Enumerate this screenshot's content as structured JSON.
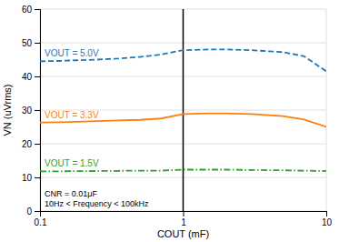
{
  "chart_data": {
    "type": "line",
    "log": "x",
    "grid": true,
    "x_label": "COUT (mF)",
    "y_label": "VN (uVrms)",
    "xlim": [
      0.1,
      10
    ],
    "xticks": [
      0.1,
      1,
      10
    ],
    "ylim": [
      0,
      60
    ],
    "yticks": [
      0,
      10,
      20,
      30,
      40,
      50,
      60
    ],
    "x": [
      0.1,
      0.13,
      0.18,
      0.25,
      0.35,
      0.5,
      0.7,
      1.0,
      1.5,
      2.0,
      3.0,
      5.0,
      7.0,
      10.0
    ],
    "series": [
      {
        "name": "VOUT = 5.0V",
        "line_style": "dashed",
        "values": [
          44.5,
          44.6,
          44.8,
          45.0,
          45.3,
          45.8,
          46.5,
          47.8,
          48.0,
          48.0,
          47.8,
          47.2,
          46.0,
          41.5
        ]
      },
      {
        "name": "VOUT = 3.3V",
        "line_style": "solid",
        "values": [
          26.3,
          26.4,
          26.5,
          26.7,
          26.9,
          27.1,
          27.5,
          28.8,
          29.0,
          29.0,
          28.8,
          28.2,
          27.2,
          25.0
        ]
      },
      {
        "name": "VOUT = 1.5V",
        "line_style": "dashdot",
        "values": [
          11.8,
          11.8,
          11.85,
          11.9,
          11.95,
          12.0,
          12.0,
          12.3,
          12.3,
          12.3,
          12.2,
          12.1,
          12.0,
          11.9
        ]
      }
    ],
    "vlines": [
      {
        "x": 1.0,
        "color": "#000000"
      }
    ],
    "annotations": [
      "CNR = 0.01μF",
      "10Hz < Frequency < 100kHz"
    ]
  }
}
